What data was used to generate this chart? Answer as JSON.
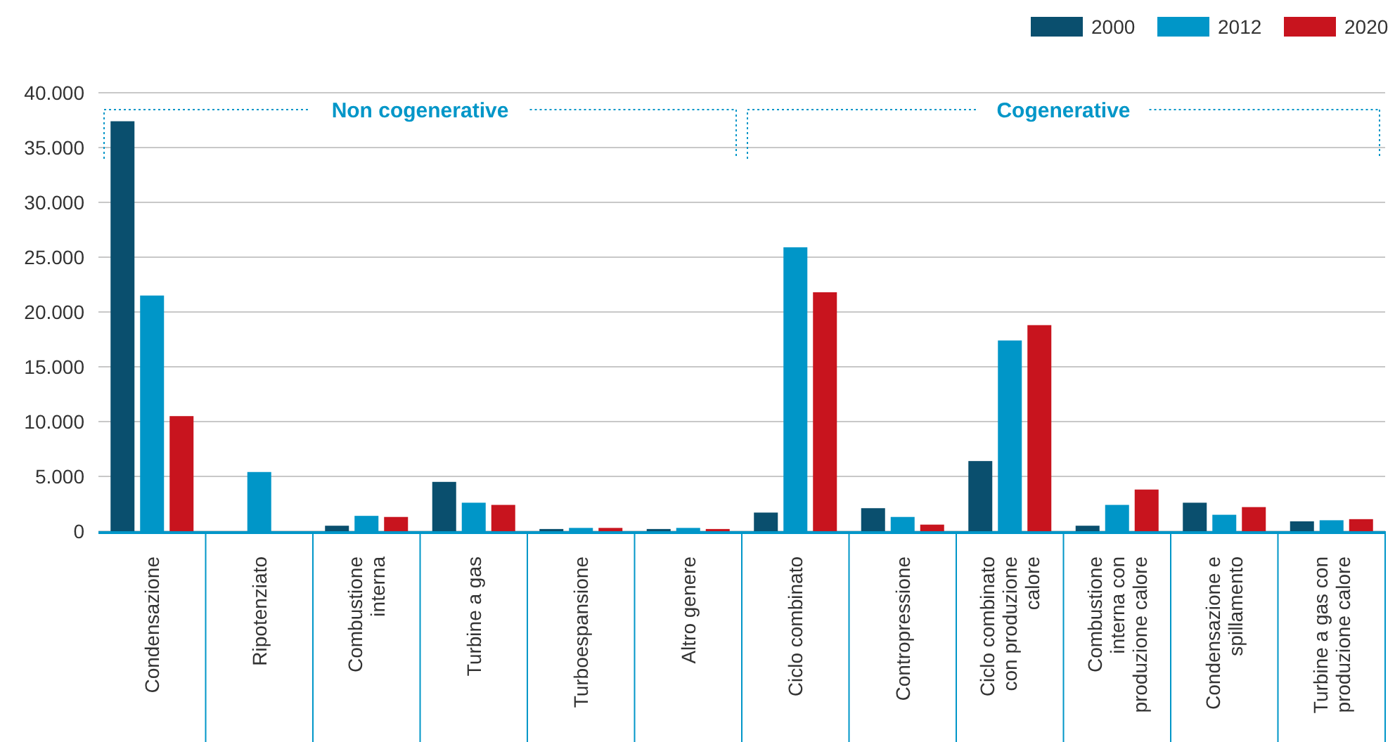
{
  "chart_data": {
    "type": "bar",
    "categories": [
      "Condensazione",
      "Ripotenziato",
      "Combustione interna",
      "Turbine a gas",
      "Turboespansione",
      "Altro genere",
      "Ciclo combinato",
      "Contropressione",
      "Ciclo combinato con produzione calore",
      "Combustione interna con produzione calore",
      "Condensazione e spillamento",
      "Turbine a gas con produzione calore"
    ],
    "series": [
      {
        "name": "2000",
        "color": "#0a4f6e",
        "values": [
          37400,
          0,
          500,
          4500,
          200,
          200,
          1700,
          2100,
          6400,
          500,
          2600,
          900
        ]
      },
      {
        "name": "2012",
        "color": "#0096c8",
        "values": [
          21500,
          5400,
          1400,
          2600,
          300,
          300,
          25900,
          1300,
          17400,
          2400,
          1500,
          1000
        ]
      },
      {
        "name": "2020",
        "color": "#c8141e",
        "values": [
          10500,
          0,
          1300,
          2400,
          300,
          200,
          21800,
          600,
          18800,
          3800,
          2200,
          1100
        ]
      }
    ],
    "ylim": [
      0,
      40000
    ],
    "yticks": [
      0,
      {
        "value": 5000,
        "label": "5.000"
      },
      {
        "value": 10000,
        "label": "10.000"
      },
      {
        "value": 15000,
        "label": "15.000"
      },
      {
        "value": 20000,
        "label": "20.000"
      },
      {
        "value": 25000,
        "label": "25.000"
      },
      {
        "value": 30000,
        "label": "30.000"
      },
      {
        "value": 35000,
        "label": "35.000"
      },
      {
        "value": 40000,
        "label": "40.000"
      }
    ],
    "grid": "y",
    "legend": "top right",
    "annotations": [
      "Non cogenerative",
      "Cogenerative"
    ]
  }
}
